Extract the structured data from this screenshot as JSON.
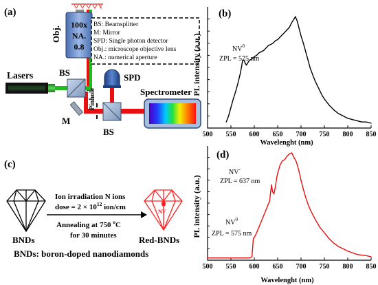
{
  "panel_a": {
    "label": "(a)",
    "objective_label": "Obj.",
    "objective_specs": [
      "100x",
      "NA.",
      "0.8"
    ],
    "legend": [
      "BS: Beamsplitter",
      "M: Mirror",
      "SPD: Single photon detector",
      "Obj.: microscope objective lens",
      "NA.: numerical aperture"
    ],
    "lasers_label": "Lasers",
    "bs_top_label": "BS",
    "bs_bottom_label": "BS",
    "mirror_label": "M",
    "pinhole_label": "Pinhole",
    "spd_label": "SPD",
    "spectrometer_label": "Spectrometer",
    "beam_color_green": "#22bb22",
    "beam_color_red": "#e81010"
  },
  "panel_c": {
    "label": "(c)",
    "step1_line1": "Ion irradiation N ions",
    "step1_line2_prefix": "dose = 2 × 10",
    "step1_line2_exp": "12",
    "step1_line2_suffix": " ion/cm",
    "step2_line1_prefix": "Annealing at 750 ",
    "step2_line1_deg": "o",
    "step2_line1_unit": "C",
    "step2_line2": "for 30 minutes",
    "left_diamond_label": "BNDs",
    "right_diamond_label": "Red-BNDs",
    "center_tag": "NV",
    "footer": "BNDs: boron-doped nanodiamonds",
    "red_color": "#ff2020"
  },
  "chart_data": [
    {
      "type": "line",
      "panel_label": "(b)",
      "xlabel": "Wavelenght (nm)",
      "ylabel": "PL intensity (a.u.)",
      "xlim": [
        500,
        850
      ],
      "xticks": [
        500,
        550,
        600,
        650,
        700,
        750,
        800,
        850
      ],
      "ylim": [
        0,
        1
      ],
      "line_color": "#000000",
      "annotations": [
        {
          "text_main": "NV",
          "text_sup": "0",
          "line2": "ZPL = 575 nm"
        }
      ],
      "x": [
        540,
        545,
        550,
        555,
        560,
        565,
        570,
        573,
        575,
        578,
        580,
        583,
        585,
        588,
        590,
        595,
        600,
        605,
        610,
        615,
        620,
        625,
        630,
        635,
        640,
        645,
        650,
        655,
        660,
        665,
        670,
        675,
        680,
        685,
        688,
        692,
        696,
        700,
        705,
        710,
        715,
        720,
        725,
        730,
        735,
        740,
        745,
        750,
        760,
        770,
        780,
        790,
        800,
        810,
        820,
        830,
        840,
        850
      ],
      "y": [
        0.05,
        0.1,
        0.17,
        0.24,
        0.3,
        0.37,
        0.45,
        0.51,
        0.56,
        0.56,
        0.54,
        0.52,
        0.53,
        0.55,
        0.56,
        0.57,
        0.59,
        0.6,
        0.62,
        0.63,
        0.64,
        0.66,
        0.68,
        0.69,
        0.7,
        0.72,
        0.73,
        0.75,
        0.77,
        0.79,
        0.81,
        0.83,
        0.87,
        0.9,
        0.92,
        0.88,
        0.82,
        0.76,
        0.7,
        0.63,
        0.56,
        0.49,
        0.44,
        0.39,
        0.35,
        0.31,
        0.27,
        0.24,
        0.19,
        0.15,
        0.12,
        0.1,
        0.08,
        0.07,
        0.06,
        0.05,
        0.05,
        0.04
      ]
    },
    {
      "type": "line",
      "panel_label": "(d)",
      "xlabel": "Wavelenght (nm)",
      "ylabel": "PL intensity (a.u.)",
      "xlim": [
        500,
        850
      ],
      "xticks": [
        500,
        550,
        600,
        650,
        700,
        750,
        800,
        850
      ],
      "ylim": [
        0,
        1
      ],
      "line_color": "#e81010",
      "annotations": [
        {
          "text_main": "NV",
          "text_sup": "-",
          "line2": "ZPL = 637 nm"
        },
        {
          "text_main": "NV",
          "text_sup": "0",
          "line2": "ZPL = 575 nm"
        }
      ],
      "x": [
        500,
        550,
        590,
        595,
        598,
        600,
        605,
        610,
        615,
        620,
        625,
        630,
        633,
        635,
        637,
        639,
        642,
        645,
        648,
        650,
        655,
        660,
        665,
        670,
        675,
        680,
        685,
        690,
        695,
        700,
        705,
        710,
        715,
        720,
        730,
        740,
        750,
        760,
        770,
        780,
        790,
        800,
        820,
        840,
        850
      ],
      "y": [
        0.02,
        0.02,
        0.02,
        0.03,
        0.19,
        0.2,
        0.24,
        0.29,
        0.34,
        0.39,
        0.44,
        0.49,
        0.52,
        0.6,
        0.66,
        0.6,
        0.58,
        0.64,
        0.72,
        0.76,
        0.83,
        0.87,
        0.88,
        0.91,
        0.93,
        0.94,
        0.9,
        0.86,
        0.79,
        0.7,
        0.62,
        0.55,
        0.49,
        0.44,
        0.36,
        0.29,
        0.24,
        0.19,
        0.15,
        0.12,
        0.1,
        0.08,
        0.05,
        0.04,
        0.03
      ]
    }
  ]
}
